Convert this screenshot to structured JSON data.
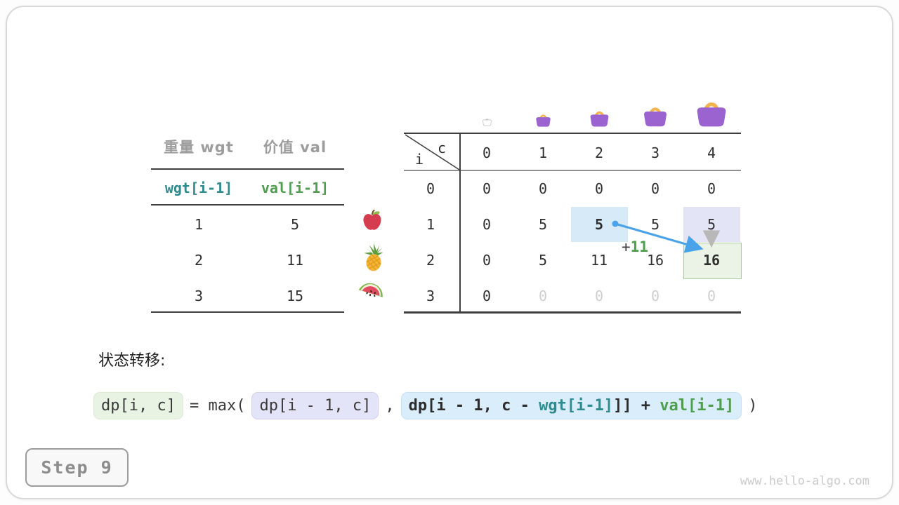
{
  "items_table": {
    "headers": [
      "重量 wgt",
      "价值 val"
    ],
    "index_row": [
      "wgt[i-1]",
      "val[i-1]"
    ],
    "rows": [
      [
        "1",
        "5"
      ],
      [
        "2",
        "11"
      ],
      [
        "3",
        "15"
      ]
    ],
    "fruit_icons": [
      "apple-icon",
      "pineapple-icon",
      "watermelon-icon"
    ]
  },
  "dp_table": {
    "corner": {
      "col_var": "c",
      "row_var": "i"
    },
    "col_headers": [
      "0",
      "1",
      "2",
      "3",
      "4"
    ],
    "row_headers": [
      "0",
      "1",
      "2",
      "3"
    ],
    "cells": [
      [
        "0",
        "0",
        "0",
        "0",
        "0"
      ],
      [
        "0",
        "5",
        "5",
        "5",
        "5"
      ],
      [
        "0",
        "5",
        "11",
        "16",
        "16"
      ],
      [
        "0",
        "0",
        "0",
        "0",
        "0"
      ]
    ],
    "bold_cells": [
      [
        1,
        2
      ],
      [
        2,
        4
      ]
    ],
    "muted_cells": [
      [
        3,
        1
      ],
      [
        3,
        2
      ],
      [
        3,
        3
      ],
      [
        3,
        4
      ]
    ],
    "highlights": [
      {
        "row": 1,
        "col": 2,
        "color": "blue"
      },
      {
        "row": 1,
        "col": 4,
        "color": "lavender"
      },
      {
        "row": 2,
        "col": 4,
        "color": "green"
      }
    ],
    "bag_icons": [
      "empty-bag-icon",
      "bag-capacity-1-icon",
      "bag-capacity-2-icon",
      "bag-capacity-3-icon",
      "bag-capacity-4-icon"
    ]
  },
  "annotation": {
    "plus": "+",
    "value": "11"
  },
  "transition": {
    "label": "状态转移:",
    "lhs": "dp[i, c]",
    "eq_max": "= max(",
    "arg1": "dp[i - 1, c]",
    "comma": ",",
    "arg2_prefix": "dp[i - 1, c - ",
    "arg2_wgt": "wgt[i-1]",
    "arg2_mid": "]] + ",
    "arg2_val": "val[i-1]",
    "close": ")"
  },
  "step_badge": "Step 9",
  "footer": "www.hello-algo.com",
  "colors": {
    "teal": "#2e8b8e",
    "green": "#4f9e4f",
    "arrow_blue": "#4aa2e8",
    "arrow_gray": "#b8b8b8",
    "highlight_blue": "#d6eaf8",
    "highlight_lavender": "#e3e4f6",
    "highlight_green": "#eaf3e5",
    "bag_purple": "#9b63cf",
    "bag_handle": "#f2b44c"
  }
}
